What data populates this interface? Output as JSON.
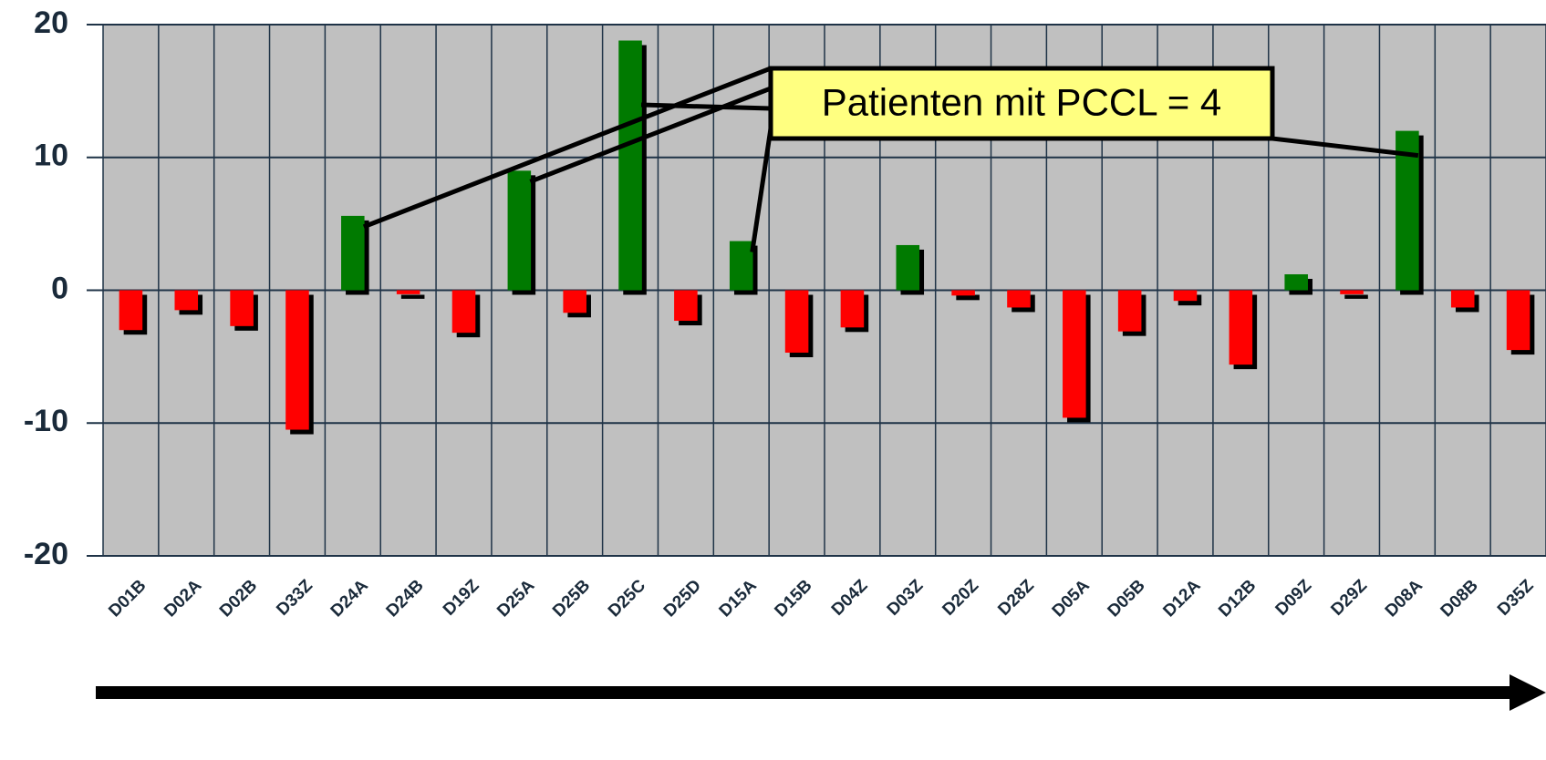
{
  "chart_data": {
    "type": "bar",
    "categories": [
      "D01B",
      "D02A",
      "D02B",
      "D33Z",
      "D24A",
      "D24B",
      "D19Z",
      "D25A",
      "D25B",
      "D25C",
      "D25D",
      "D15A",
      "D15B",
      "D04Z",
      "D03Z",
      "D20Z",
      "D28Z",
      "D05A",
      "D05B",
      "D12A",
      "D12B",
      "D09Z",
      "D29Z",
      "D08A",
      "D08B",
      "D35Z"
    ],
    "values": [
      -3.0,
      -1.5,
      -2.7,
      -10.5,
      5.6,
      -0.3,
      -3.2,
      9.0,
      -1.7,
      18.8,
      -2.3,
      3.7,
      -4.7,
      -2.8,
      3.4,
      -0.4,
      -1.3,
      -9.6,
      -3.1,
      -0.8,
      -5.6,
      1.2,
      -0.3,
      12.0,
      -1.3,
      -4.5
    ],
    "positive_color": "#007a00",
    "negative_color": "#ff0000",
    "ylim": [
      -20,
      20
    ],
    "yticks": [
      20,
      10,
      0,
      -10,
      -20
    ],
    "annotation": {
      "text": "Patienten mit PCCL = 4",
      "targets": [
        "D24A",
        "D25A",
        "D25C",
        "D15A",
        "D08A"
      ]
    }
  }
}
